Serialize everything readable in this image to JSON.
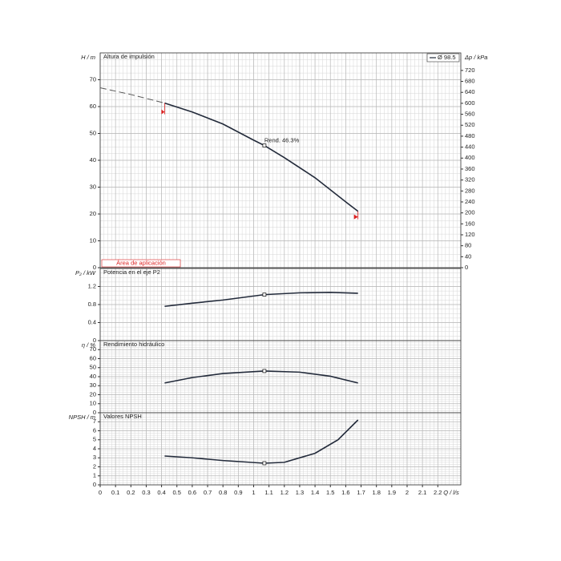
{
  "chart_data": [
    {
      "type": "line",
      "title": "Altura de impulsión",
      "y_label": "H / m",
      "y2_label": "Δp / kPa",
      "ylim": [
        0,
        80
      ],
      "yticks": [
        0,
        10,
        20,
        30,
        40,
        50,
        60,
        70
      ],
      "y2lim": [
        0,
        784
      ],
      "y2ticks": [
        0,
        40,
        80,
        120,
        160,
        200,
        240,
        280,
        320,
        360,
        400,
        440,
        480,
        520,
        560,
        600,
        640,
        680,
        720
      ],
      "annotation": "Rend. 46.3%",
      "range_label": "Área de aplicación",
      "application_range": [
        0.42,
        1.68
      ],
      "series": [
        {
          "style": "dashed",
          "color": "#555555",
          "x": [
            0,
            0.2,
            0.42
          ],
          "values": [
            67,
            64.5,
            61.3
          ]
        },
        {
          "name": "Ø 98.5",
          "color": "#222a3a",
          "x": [
            0.42,
            0.6,
            0.8,
            1.0,
            1.07,
            1.2,
            1.4,
            1.6,
            1.68
          ],
          "values": [
            61.3,
            58,
            53.5,
            47.5,
            45.5,
            41,
            33.5,
            24.5,
            21
          ]
        }
      ],
      "point": {
        "x": 1.07,
        "y": 45.5
      }
    },
    {
      "type": "line",
      "title": "Potencia en el eje P2",
      "y_label": "P₂ / kW",
      "ylim": [
        0,
        1.6
      ],
      "yticks": [
        0,
        0.4,
        0.8,
        1.2
      ],
      "series": [
        {
          "color": "#222a3a",
          "x": [
            0.42,
            0.6,
            0.8,
            1.07,
            1.3,
            1.5,
            1.68
          ],
          "values": [
            0.76,
            0.83,
            0.9,
            1.02,
            1.06,
            1.07,
            1.05
          ]
        }
      ],
      "point": {
        "x": 1.07,
        "y": 1.02
      }
    },
    {
      "type": "line",
      "title": "Rendimiento hidráulico",
      "y_label": "η / %",
      "ylim": [
        0,
        80
      ],
      "yticks": [
        0,
        10,
        20,
        30,
        40,
        50,
        60,
        70
      ],
      "series": [
        {
          "color": "#222a3a",
          "x": [
            0.42,
            0.6,
            0.8,
            1.07,
            1.3,
            1.5,
            1.68
          ],
          "values": [
            33,
            39,
            43.5,
            46.3,
            45,
            40.5,
            33
          ]
        }
      ],
      "point": {
        "x": 1.07,
        "y": 46.3
      }
    },
    {
      "type": "line",
      "title": "Valores NPSH",
      "y_label": "NPSH / m",
      "ylim": [
        0,
        8
      ],
      "yticks": [
        0,
        1,
        2,
        3,
        4,
        5,
        6,
        7
      ],
      "xlim": [
        0,
        2.35
      ],
      "xticks": [
        0,
        0.1,
        0.2,
        0.3,
        0.4,
        0.5,
        0.6,
        0.7,
        0.8,
        0.9,
        1,
        1.1,
        1.2,
        1.3,
        1.4,
        1.5,
        1.6,
        1.7,
        1.8,
        1.9,
        2,
        2.1,
        2.2
      ],
      "x_label": "Q / l/s",
      "series": [
        {
          "color": "#222a3a",
          "x": [
            0.42,
            0.6,
            0.8,
            1.07,
            1.2,
            1.4,
            1.55,
            1.68
          ],
          "values": [
            3.2,
            3.0,
            2.7,
            2.4,
            2.5,
            3.5,
            5,
            7.2
          ]
        }
      ],
      "point": {
        "x": 1.07,
        "y": 2.4
      }
    }
  ]
}
